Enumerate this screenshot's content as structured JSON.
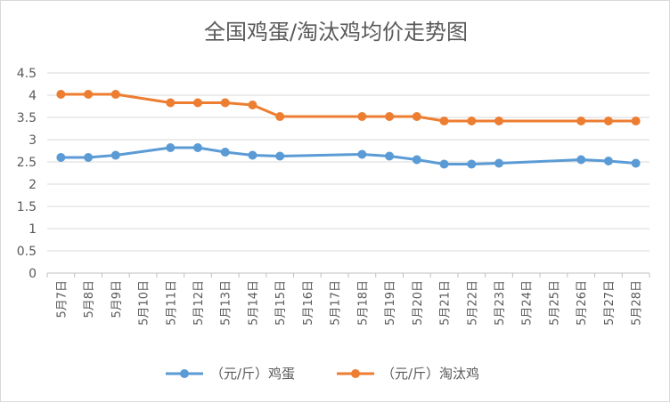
{
  "chart_data": {
    "type": "line",
    "title": "全国鸡蛋/淘汰鸡均价走势图",
    "xlabel": "",
    "ylabel": "",
    "ylim": [
      0,
      4.5
    ],
    "yticks": [
      "0",
      "0.5",
      "1",
      "1.5",
      "2",
      "2.5",
      "3",
      "3.5",
      "4",
      "4.5"
    ],
    "grid": "horizontal",
    "legend": "bottom",
    "categories": [
      "5月7日",
      "5月8日",
      "5月9日",
      "5月10日",
      "5月11日",
      "5月12日",
      "5月13日",
      "5月14日",
      "5月15日",
      "5月16日",
      "5月17日",
      "5月18日",
      "5月19日",
      "5月20日",
      "5月21日",
      "5月22日",
      "5月23日",
      "5月24日",
      "5月25日",
      "5月26日",
      "5月27日",
      "5月28日"
    ],
    "series": [
      {
        "name": "（元/斤）鸡蛋",
        "color": "#5b9bd5",
        "values": [
          2.6,
          2.6,
          2.65,
          null,
          2.82,
          2.82,
          2.72,
          2.65,
          2.63,
          null,
          null,
          2.67,
          2.63,
          2.55,
          2.45,
          2.45,
          2.47,
          null,
          null,
          2.55,
          2.52,
          2.47
        ]
      },
      {
        "name": "（元/斤）淘汰鸡",
        "color": "#ed7d31",
        "values": [
          4.02,
          4.02,
          4.02,
          null,
          3.83,
          3.83,
          3.83,
          3.78,
          3.52,
          null,
          null,
          3.52,
          3.52,
          3.52,
          3.42,
          3.42,
          3.42,
          null,
          null,
          3.42,
          3.42,
          3.42
        ]
      }
    ]
  }
}
